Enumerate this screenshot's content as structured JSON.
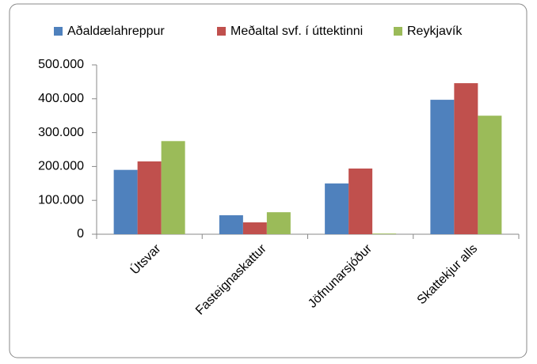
{
  "chart_data": {
    "type": "bar",
    "categories": [
      "Útsvar",
      "Fasteignaskattur",
      "Jöfnunarsjóður",
      "Skattekjur alls"
    ],
    "series": [
      {
        "name": "Aðaldælahreppur",
        "color": "#4f81bd",
        "values": [
          190000,
          56000,
          150000,
          397000
        ]
      },
      {
        "name": "Meðaltal svf. í úttektinni",
        "color": "#c0504d",
        "values": [
          215000,
          35000,
          194000,
          446000
        ]
      },
      {
        "name": "Reykjavík",
        "color": "#9bbb59",
        "values": [
          275000,
          65000,
          2000,
          350000
        ]
      }
    ],
    "ylim": [
      0,
      500000
    ],
    "yticks": [
      0,
      {
        "value": 100000,
        "label": "100.000"
      },
      {
        "value": 200000,
        "label": "200.000"
      },
      {
        "value": 300000,
        "label": "300.000"
      },
      {
        "value": 400000,
        "label": "400.000"
      },
      {
        "value": 500000,
        "label": "500.000"
      }
    ],
    "grid": false,
    "legend": "top"
  }
}
